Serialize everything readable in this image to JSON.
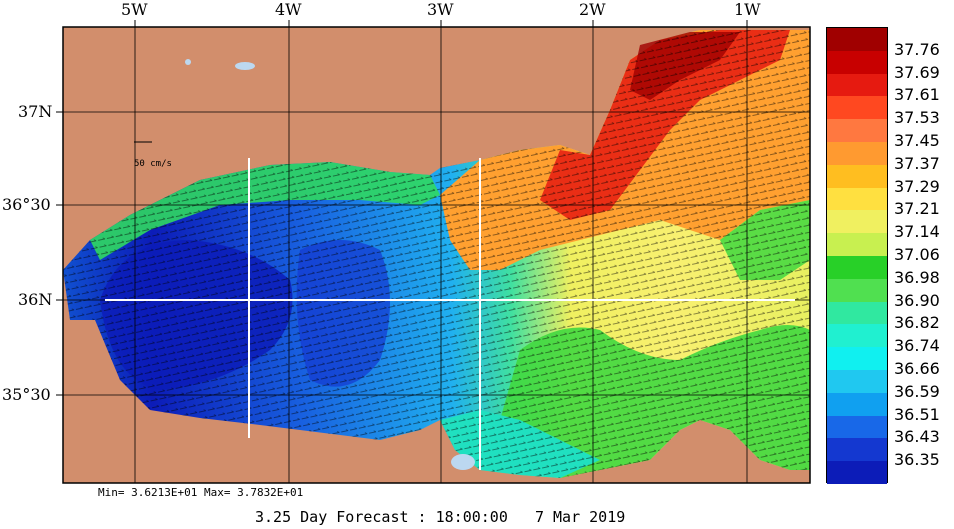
{
  "lon_labels": [
    "5W",
    "4W",
    "3W",
    "2W",
    "1W"
  ],
  "lat_labels": [
    "37N",
    "36°30",
    "36N",
    "35°30"
  ],
  "scale_label": "50 cm/s",
  "stats": "Min= 3.6213E+01  Max= 3.7832E+01",
  "caption": "3.25 Day Forecast : 18:00:00   7 Mar 2019",
  "colorbar": {
    "labels": [
      "37.76",
      "37.69",
      "37.61",
      "37.53",
      "37.45",
      "37.37",
      "37.29",
      "37.21",
      "37.14",
      "37.06",
      "36.98",
      "36.90",
      "36.82",
      "36.74",
      "36.66",
      "36.59",
      "36.51",
      "36.43",
      "36.35"
    ],
    "colors": [
      "#a00000",
      "#c80000",
      "#e61a10",
      "#ff4820",
      "#ff7840",
      "#ff9a30",
      "#ffbe20",
      "#ffe040",
      "#f0f060",
      "#c8f050",
      "#28d028",
      "#50e050",
      "#30e8a0",
      "#20f0d0",
      "#10f0f0",
      "#20c8f0",
      "#10a0f0",
      "#1868e8",
      "#1438d0",
      "#0c1cb8"
    ]
  },
  "land_color": "#d28e6c"
}
